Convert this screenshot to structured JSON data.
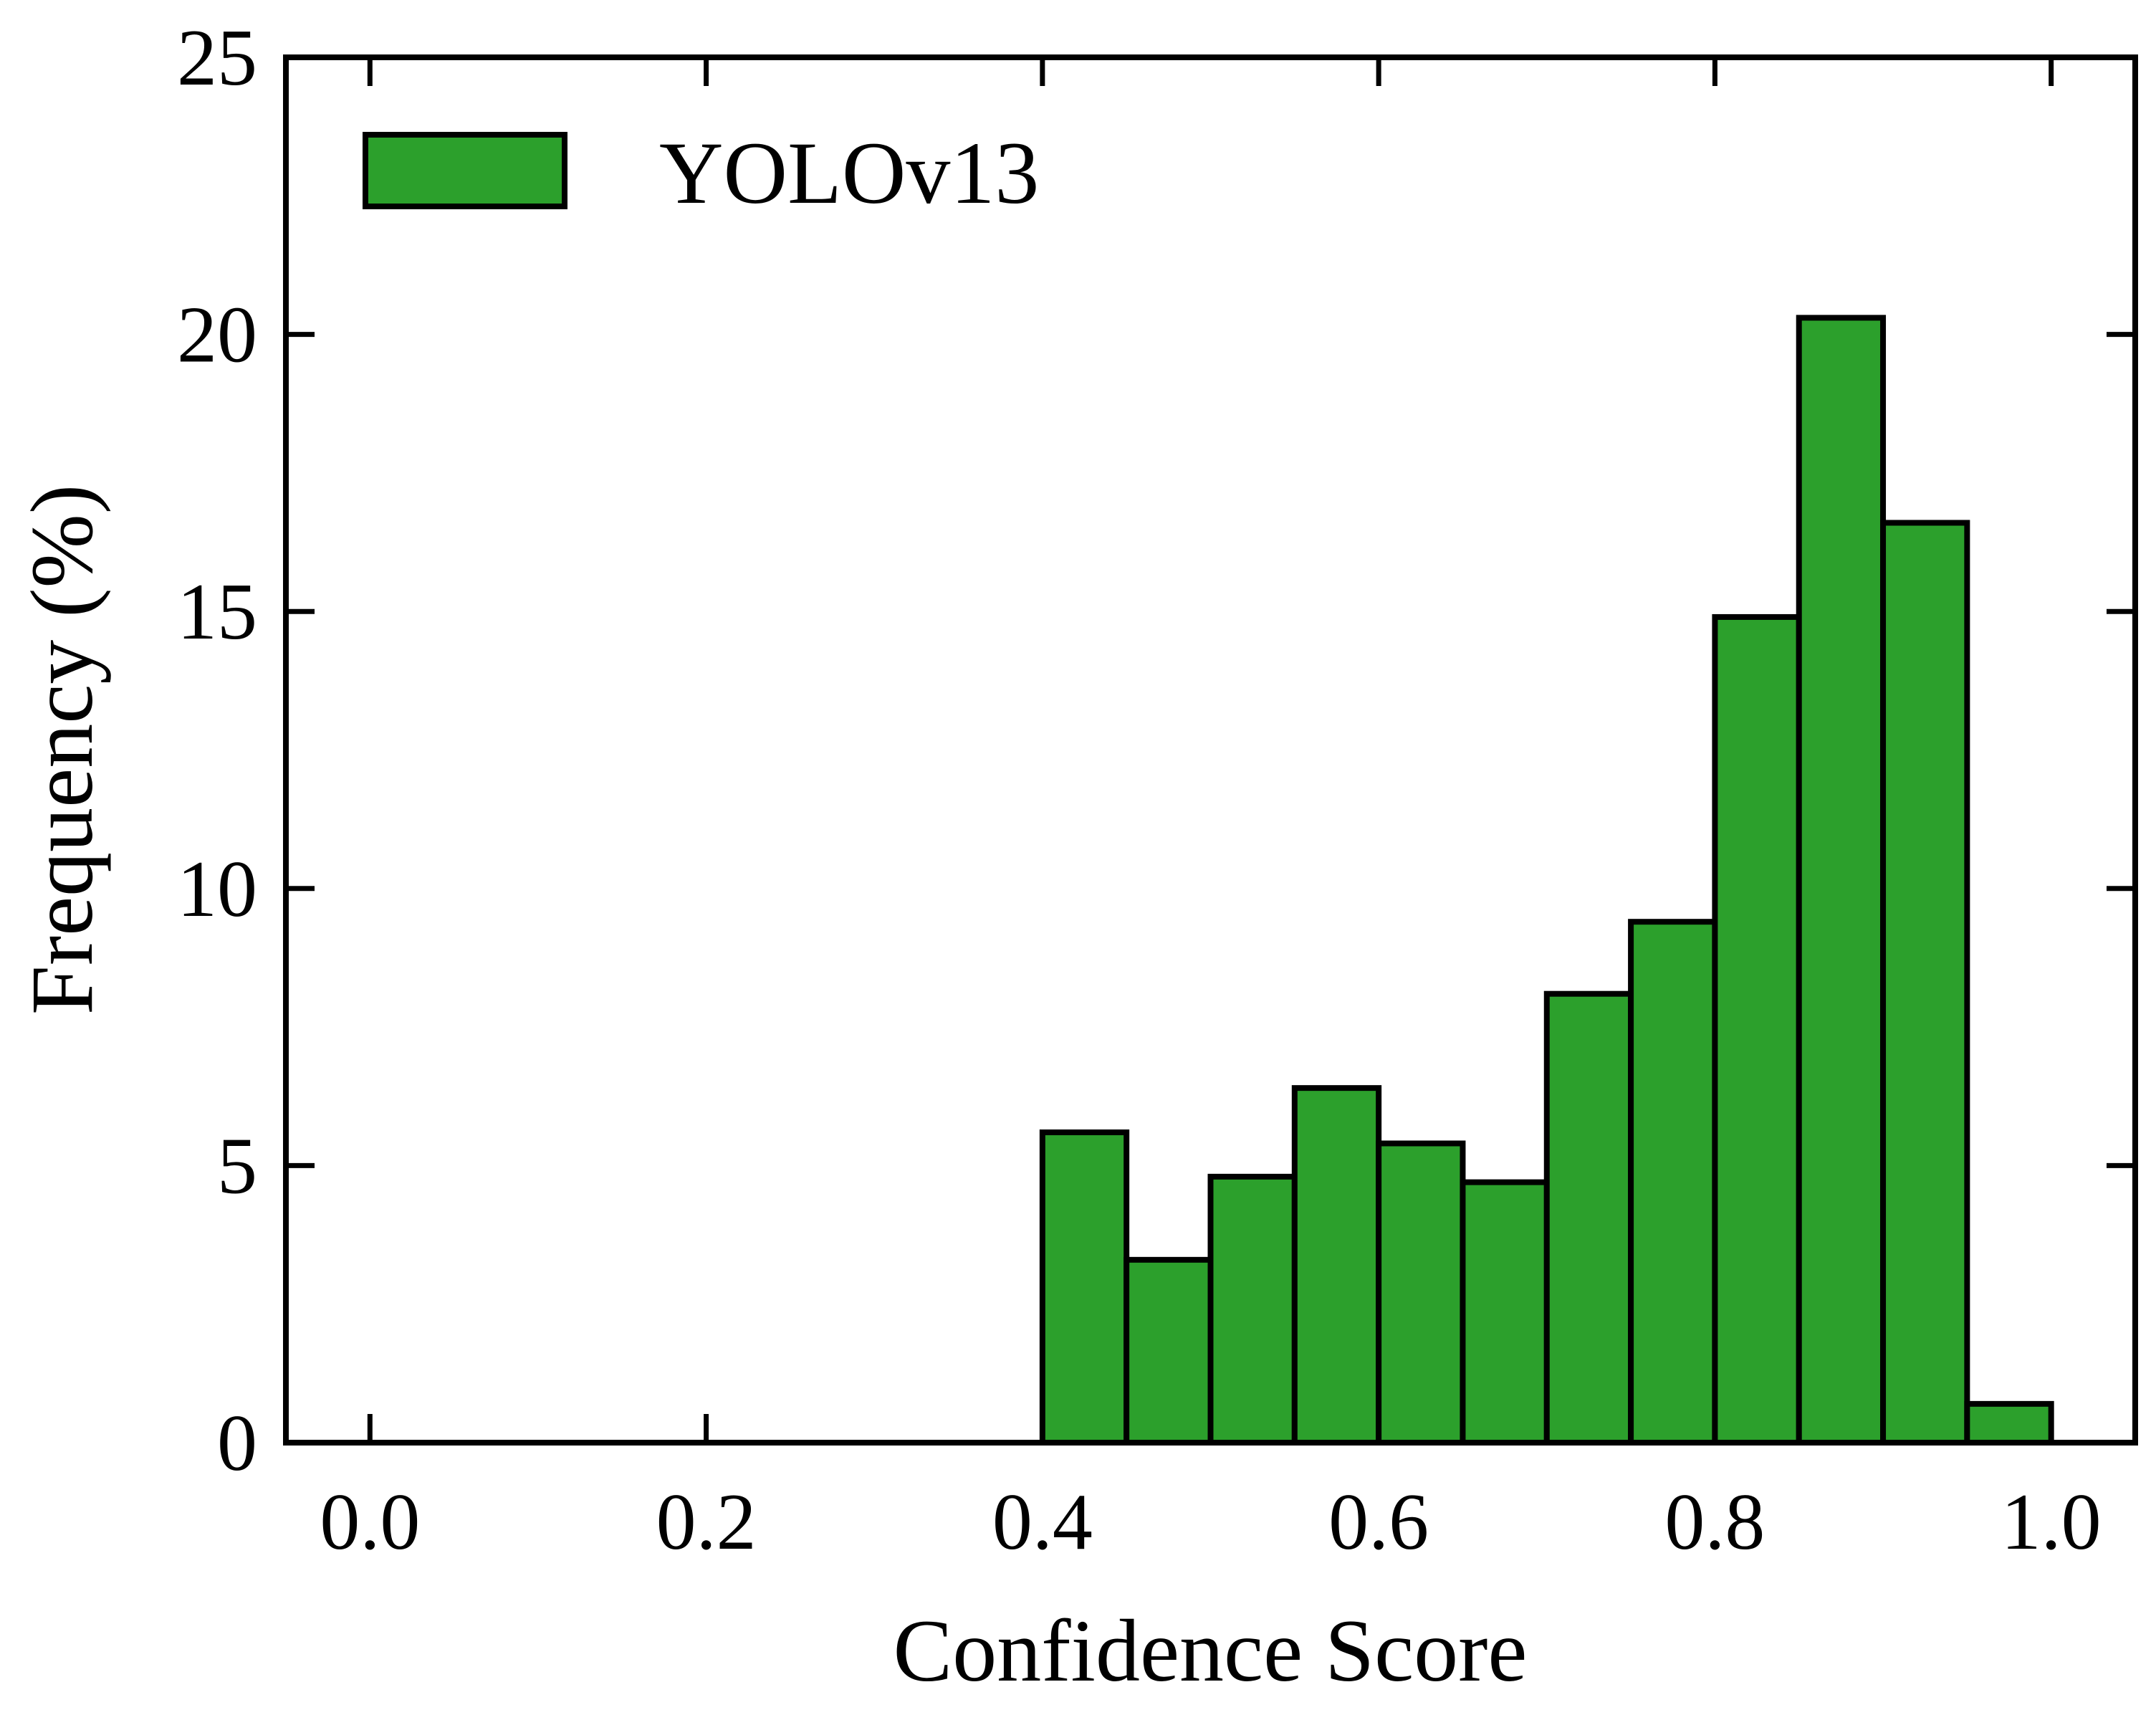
{
  "chart_data": {
    "type": "bar",
    "subtype": "histogram",
    "xlabel": "Confidence Score",
    "ylabel": "Frequency (%)",
    "xlim": [
      -0.05,
      1.05
    ],
    "ylim": [
      0,
      25
    ],
    "xticks": [
      0.0,
      0.2,
      0.4,
      0.6,
      0.8,
      1.0
    ],
    "xtick_labels": [
      "0.0",
      "0.2",
      "0.4",
      "0.6",
      "0.8",
      "1.0"
    ],
    "yticks": [
      0,
      5,
      10,
      15,
      20,
      25
    ],
    "ytick_labels": [
      "0",
      "5",
      "10",
      "15",
      "20",
      "25"
    ],
    "grid": false,
    "legend": {
      "placement": "top-left",
      "entries": [
        "YOLOv13"
      ]
    },
    "bar_color": "#2ca02c",
    "edge_color": "#000000",
    "series": [
      {
        "name": "YOLOv13",
        "bins": [
          [
            0.0,
            0.05
          ],
          [
            0.05,
            0.1
          ],
          [
            0.1,
            0.15
          ],
          [
            0.15,
            0.2
          ],
          [
            0.2,
            0.25
          ],
          [
            0.25,
            0.3
          ],
          [
            0.3,
            0.35
          ],
          [
            0.35,
            0.4
          ],
          [
            0.4,
            0.45
          ],
          [
            0.45,
            0.5
          ],
          [
            0.5,
            0.55
          ],
          [
            0.55,
            0.6
          ],
          [
            0.6,
            0.65
          ],
          [
            0.65,
            0.7
          ],
          [
            0.7,
            0.75
          ],
          [
            0.75,
            0.8
          ],
          [
            0.8,
            0.85
          ],
          [
            0.85,
            0.9
          ],
          [
            0.9,
            0.95
          ],
          [
            0.95,
            1.0
          ]
        ],
        "values": [
          0,
          0,
          0,
          0,
          0,
          0,
          0,
          0,
          5.6,
          3.3,
          4.8,
          6.4,
          5.4,
          4.7,
          8.1,
          9.4,
          14.9,
          20.3,
          16.6,
          0.7
        ]
      }
    ]
  }
}
